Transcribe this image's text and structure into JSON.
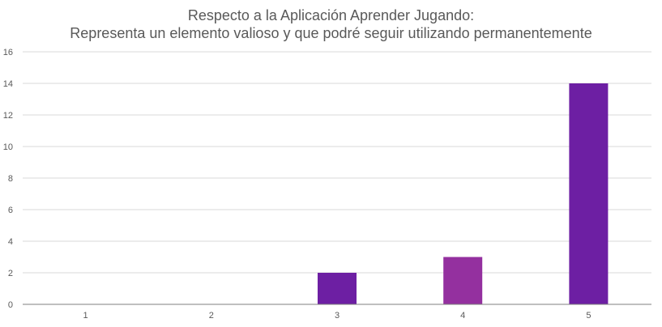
{
  "chart_data": {
    "type": "bar",
    "title_lines": [
      "Respecto a la Aplicación Aprender Jugando:",
      "Representa un elemento valioso y que podré seguir utilizando permanentemente"
    ],
    "categories": [
      "1",
      "2",
      "3",
      "4",
      "5"
    ],
    "values": [
      0,
      0,
      2,
      3,
      14
    ],
    "bar_colors": [
      "#6d1fa3",
      "#6d1fa3",
      "#6d1fa3",
      "#94309f",
      "#6d1fa3"
    ],
    "ylim": [
      0,
      16
    ],
    "yticks": [
      "0",
      "2",
      "4",
      "6",
      "8",
      "10",
      "12",
      "14",
      "16"
    ],
    "grid": true,
    "legend": "none",
    "grid_color": "#d9d9d9",
    "axis_color": "#7f7f7f",
    "text_color": "#595959"
  }
}
